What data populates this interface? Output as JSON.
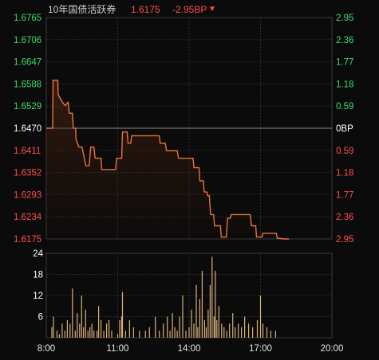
{
  "header": {
    "title": "10年国债活跃券",
    "price": "1.6175",
    "change": "-2.95BP",
    "change_arrow": "▼"
  },
  "colors": {
    "background": "#0b0b0b",
    "price_line": "#e8733a",
    "up": "#3ddc6b",
    "down": "#ff4d4d",
    "neutral": "#ffffff",
    "volume": "#d9b07a",
    "grid": "#2e2e2e"
  },
  "chart_data": [
    {
      "type": "line",
      "ylim": [
        1.6175,
        1.6765
      ],
      "reference_price": 1.647,
      "left_ticks": [
        "1.6765",
        "1.6706",
        "1.6647",
        "1.6588",
        "1.6529",
        "1.6470",
        "1.6411",
        "1.6352",
        "1.6293",
        "1.6234",
        "1.6175"
      ],
      "right_ticks": [
        "2.95",
        "2.36",
        "1.77",
        "1.18",
        "0.59",
        "0BP",
        "0.59",
        "1.18",
        "1.77",
        "2.36",
        "2.95"
      ],
      "x_ticks": [
        "8:00",
        "11:00",
        "14:00",
        "17:00",
        "20:00"
      ],
      "x_range": [
        "08:00",
        "20:00"
      ],
      "grid": true,
      "series": [
        {
          "points": [
            [
              "08:00",
              1.647
            ],
            [
              "08:16",
              1.647
            ],
            [
              "08:17",
              1.6598
            ],
            [
              "08:29",
              1.6598
            ],
            [
              "08:30",
              1.656
            ],
            [
              "08:40",
              1.654
            ],
            [
              "08:48",
              1.653
            ],
            [
              "08:55",
              1.654
            ],
            [
              "08:58",
              1.651
            ],
            [
              "09:06",
              1.651
            ],
            [
              "09:08",
              1.647
            ],
            [
              "09:14",
              1.647
            ],
            [
              "09:15",
              1.644
            ],
            [
              "09:22",
              1.642
            ],
            [
              "09:30",
              1.642
            ],
            [
              "09:34",
              1.64
            ],
            [
              "09:40",
              1.637
            ],
            [
              "09:48",
              1.637
            ],
            [
              "09:52",
              1.642
            ],
            [
              "10:00",
              1.642
            ],
            [
              "10:03",
              1.639
            ],
            [
              "10:18",
              1.639
            ],
            [
              "10:20",
              1.636
            ],
            [
              "10:55",
              1.636
            ],
            [
              "10:57",
              1.639
            ],
            [
              "11:10",
              1.639
            ],
            [
              "11:12",
              1.646
            ],
            [
              "11:24",
              1.646
            ],
            [
              "11:26",
              1.643
            ],
            [
              "11:33",
              1.643
            ],
            [
              "11:35",
              1.645
            ],
            [
              "12:45",
              1.645
            ],
            [
              "12:47",
              1.643
            ],
            [
              "13:00",
              1.643
            ],
            [
              "13:03",
              1.641
            ],
            [
              "13:30",
              1.641
            ],
            [
              "13:33",
              1.639
            ],
            [
              "14:10",
              1.639
            ],
            [
              "14:12",
              1.6365
            ],
            [
              "14:25",
              1.6365
            ],
            [
              "14:27",
              1.633
            ],
            [
              "14:36",
              1.633
            ],
            [
              "14:38",
              1.63
            ],
            [
              "14:45",
              1.63
            ],
            [
              "14:47",
              1.629
            ],
            [
              "14:51",
              1.629
            ],
            [
              "14:54",
              1.624
            ],
            [
              "15:02",
              1.624
            ],
            [
              "15:04",
              1.621
            ],
            [
              "15:19",
              1.621
            ],
            [
              "15:21",
              1.618
            ],
            [
              "15:34",
              1.618
            ],
            [
              "15:37",
              1.623
            ],
            [
              "15:44",
              1.623
            ],
            [
              "15:46",
              1.624
            ],
            [
              "16:34",
              1.624
            ],
            [
              "16:37",
              1.621
            ],
            [
              "16:48",
              1.621
            ],
            [
              "16:50",
              1.618
            ],
            [
              "17:04",
              1.618
            ],
            [
              "17:06",
              1.619
            ],
            [
              "17:40",
              1.619
            ],
            [
              "17:42",
              1.6177
            ],
            [
              "18:00",
              1.6175
            ],
            [
              "18:12",
              1.6175
            ]
          ]
        }
      ]
    },
    {
      "type": "bar",
      "ylim": [
        0,
        24
      ],
      "y_ticks": [
        "6",
        "12",
        "18",
        "24"
      ],
      "x_range": [
        "08:00",
        "20:00"
      ],
      "series": [
        {
          "points": [
            [
              "08:14",
              3
            ],
            [
              "08:18",
              6
            ],
            [
              "08:27",
              2
            ],
            [
              "08:33",
              1
            ],
            [
              "08:40",
              4
            ],
            [
              "08:47",
              2
            ],
            [
              "08:53",
              5
            ],
            [
              "09:00",
              4
            ],
            [
              "09:06",
              14
            ],
            [
              "09:13",
              2
            ],
            [
              "09:18",
              7
            ],
            [
              "09:24",
              4
            ],
            [
              "09:29",
              12
            ],
            [
              "09:34",
              3
            ],
            [
              "09:39",
              8
            ],
            [
              "09:45",
              2
            ],
            [
              "09:50",
              3
            ],
            [
              "09:55",
              4
            ],
            [
              "10:00",
              2
            ],
            [
              "10:08",
              2
            ],
            [
              "10:12",
              9
            ],
            [
              "10:18",
              5
            ],
            [
              "10:25",
              2
            ],
            [
              "10:32",
              4
            ],
            [
              "10:38",
              5
            ],
            [
              "10:45",
              2
            ],
            [
              "11:00",
              1
            ],
            [
              "11:05",
              5
            ],
            [
              "11:10",
              6
            ],
            [
              "11:12",
              13
            ],
            [
              "11:20",
              2
            ],
            [
              "11:30",
              5
            ],
            [
              "11:40",
              3
            ],
            [
              "11:55",
              2
            ],
            [
              "12:10",
              2
            ],
            [
              "12:20",
              3
            ],
            [
              "12:35",
              6
            ],
            [
              "12:45",
              2
            ],
            [
              "12:55",
              4
            ],
            [
              "13:05",
              6
            ],
            [
              "13:12",
              2
            ],
            [
              "13:18",
              7
            ],
            [
              "13:24",
              3
            ],
            [
              "13:30",
              2
            ],
            [
              "13:36",
              6
            ],
            [
              "13:44",
              12
            ],
            [
              "13:52",
              2
            ],
            [
              "14:00",
              3
            ],
            [
              "14:06",
              8
            ],
            [
              "14:12",
              4
            ],
            [
              "14:18",
              15
            ],
            [
              "14:22",
              3
            ],
            [
              "14:27",
              11
            ],
            [
              "14:33",
              19
            ],
            [
              "14:39",
              5
            ],
            [
              "14:43",
              3
            ],
            [
              "14:48",
              8
            ],
            [
              "14:53",
              15
            ],
            [
              "14:58",
              23
            ],
            [
              "15:03",
              6
            ],
            [
              "15:06",
              19
            ],
            [
              "15:10",
              5
            ],
            [
              "15:15",
              9
            ],
            [
              "15:22",
              4
            ],
            [
              "15:28",
              3
            ],
            [
              "15:35",
              2
            ],
            [
              "15:42",
              4
            ],
            [
              "15:50",
              7
            ],
            [
              "15:56",
              3
            ],
            [
              "16:04",
              4
            ],
            [
              "16:12",
              3
            ],
            [
              "16:20",
              6
            ],
            [
              "16:30",
              4
            ],
            [
              "16:40",
              3
            ],
            [
              "16:52",
              5
            ],
            [
              "17:00",
              12
            ],
            [
              "17:06",
              4
            ],
            [
              "17:16",
              3
            ],
            [
              "17:26",
              2
            ],
            [
              "17:38",
              2
            ]
          ]
        }
      ]
    }
  ]
}
